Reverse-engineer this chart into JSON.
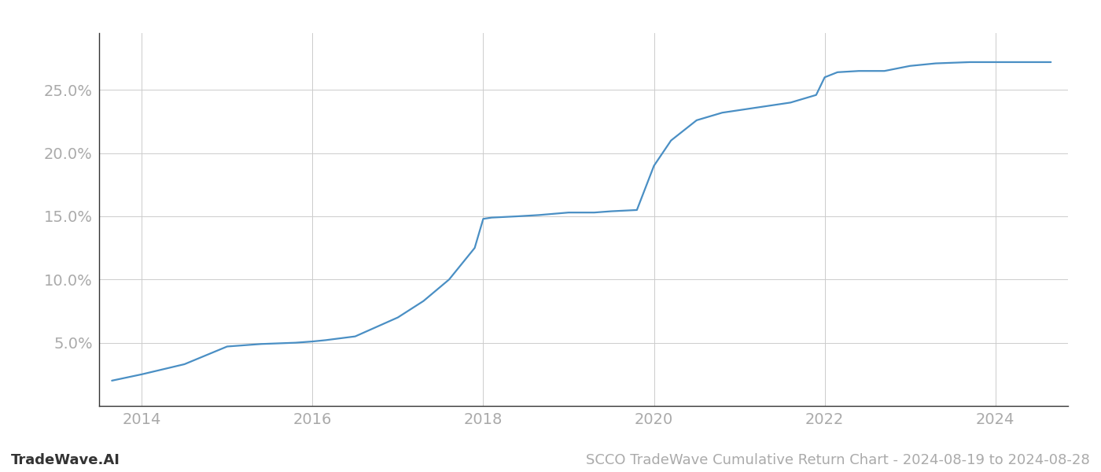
{
  "title": "SCCO TradeWave Cumulative Return Chart - 2024-08-19 to 2024-08-28",
  "watermark": "TradeWave.AI",
  "line_color": "#4a8fc4",
  "background_color": "#ffffff",
  "grid_color": "#cccccc",
  "x_values": [
    2013.65,
    2014.0,
    2014.5,
    2015.0,
    2015.4,
    2015.8,
    2016.0,
    2016.15,
    2016.5,
    2017.0,
    2017.3,
    2017.6,
    2017.9,
    2018.0,
    2018.1,
    2018.4,
    2018.65,
    2019.0,
    2019.3,
    2019.5,
    2019.8,
    2020.0,
    2020.2,
    2020.5,
    2020.8,
    2021.0,
    2021.3,
    2021.6,
    2021.9,
    2022.0,
    2022.15,
    2022.4,
    2022.7,
    2023.0,
    2023.3,
    2023.7,
    2024.0,
    2024.4,
    2024.65
  ],
  "y_values": [
    0.02,
    0.025,
    0.033,
    0.047,
    0.049,
    0.05,
    0.051,
    0.052,
    0.055,
    0.07,
    0.083,
    0.1,
    0.125,
    0.148,
    0.149,
    0.15,
    0.151,
    0.153,
    0.153,
    0.154,
    0.155,
    0.19,
    0.21,
    0.226,
    0.232,
    0.234,
    0.237,
    0.24,
    0.246,
    0.26,
    0.264,
    0.265,
    0.265,
    0.269,
    0.271,
    0.272,
    0.272,
    0.272,
    0.272
  ],
  "xlim": [
    2013.5,
    2024.85
  ],
  "ylim": [
    0.0,
    0.295
  ],
  "yticks": [
    0.05,
    0.1,
    0.15,
    0.2,
    0.25
  ],
  "ytick_labels": [
    "5.0%",
    "10.0%",
    "15.0%",
    "20.0%",
    "25.0%"
  ],
  "xticks": [
    2014,
    2016,
    2018,
    2020,
    2022,
    2024
  ],
  "tick_label_color": "#aaaaaa",
  "tick_fontsize": 14,
  "title_fontsize": 13,
  "watermark_fontsize": 13,
  "line_width": 1.6,
  "spine_color": "#333333"
}
